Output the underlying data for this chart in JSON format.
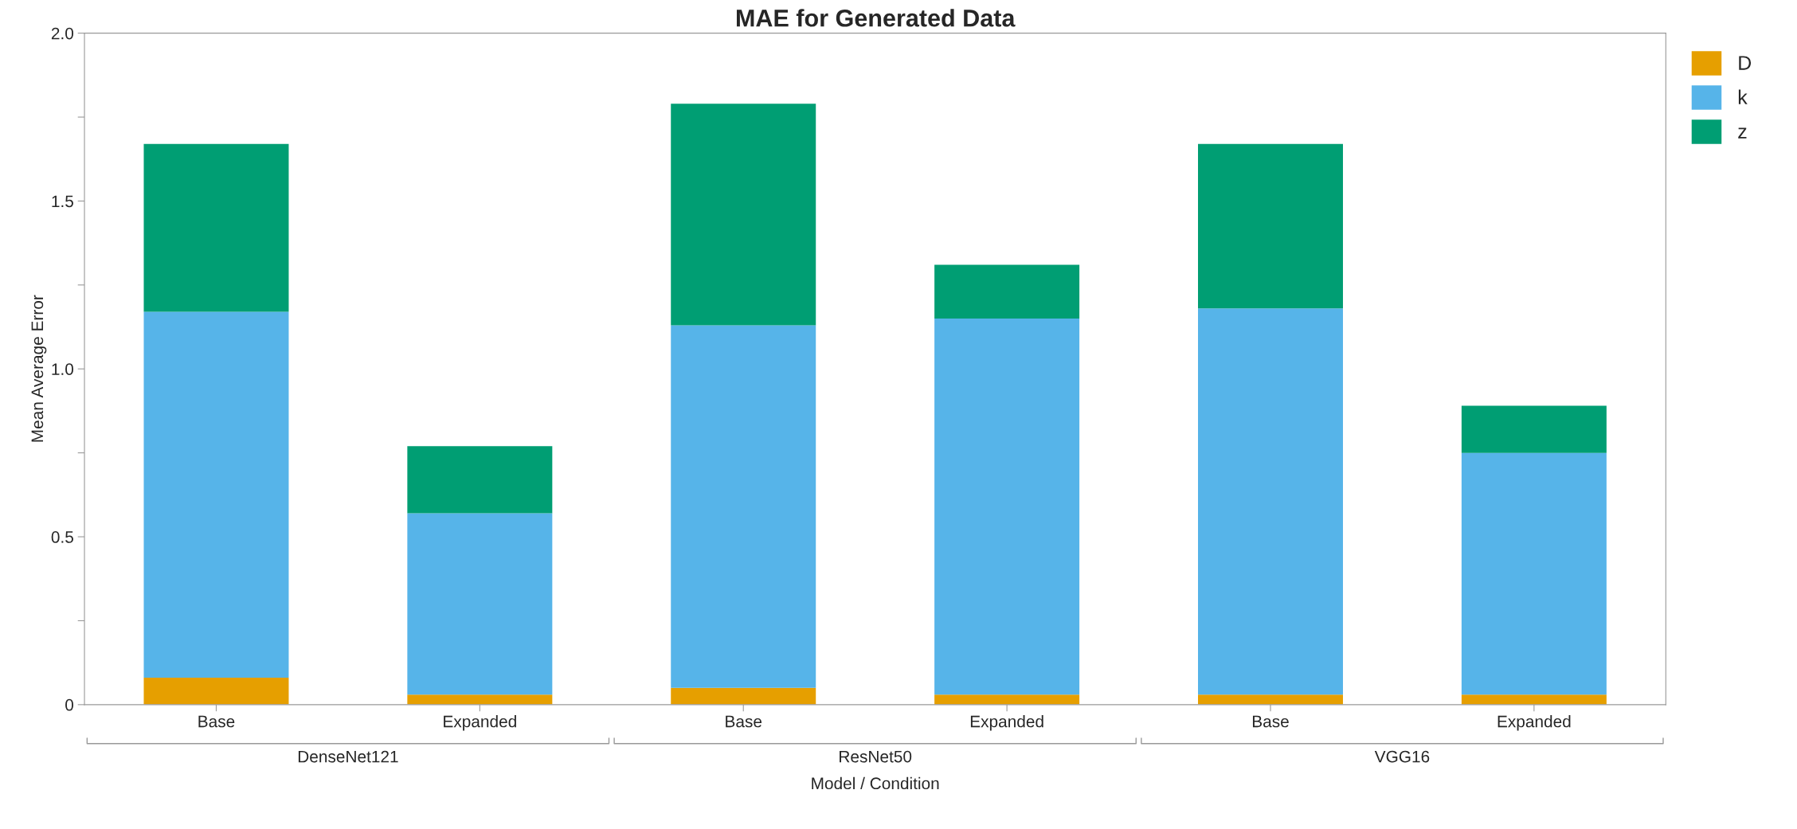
{
  "chart_data": {
    "type": "bar",
    "title": "MAE for Generated Data",
    "xlabel": "Model / Condition",
    "ylabel": "Mean Average Error",
    "categories": [
      "Base",
      "Expanded",
      "Base",
      "Expanded",
      "Base",
      "Expanded"
    ],
    "annotations": [
      "DenseNet121",
      "ResNet50",
      "VGG16"
    ],
    "stacked": true,
    "series": [
      {
        "name": "D",
        "color": "#e69f00",
        "values": [
          0.08,
          0.03,
          0.05,
          0.03,
          0.03,
          0.03
        ]
      },
      {
        "name": "k",
        "color": "#56b4e9",
        "values": [
          1.09,
          0.54,
          1.08,
          1.12,
          1.15,
          0.72
        ]
      },
      {
        "name": "z",
        "color": "#009e73",
        "values": [
          0.5,
          0.2,
          0.66,
          0.16,
          0.49,
          0.14
        ]
      }
    ],
    "ylim": [
      0,
      2
    ],
    "yticks": [
      0,
      {
        "value": 0.25,
        "label": null
      },
      0.5,
      {
        "value": 0.75,
        "label": null
      },
      {
        "value": 1,
        "label": "1.0"
      },
      {
        "value": 1.25,
        "label": null
      },
      1.5,
      {
        "value": 1.75,
        "label": null
      },
      {
        "value": 2,
        "label": "2.0"
      }
    ],
    "grid": false,
    "legend": "top right"
  }
}
